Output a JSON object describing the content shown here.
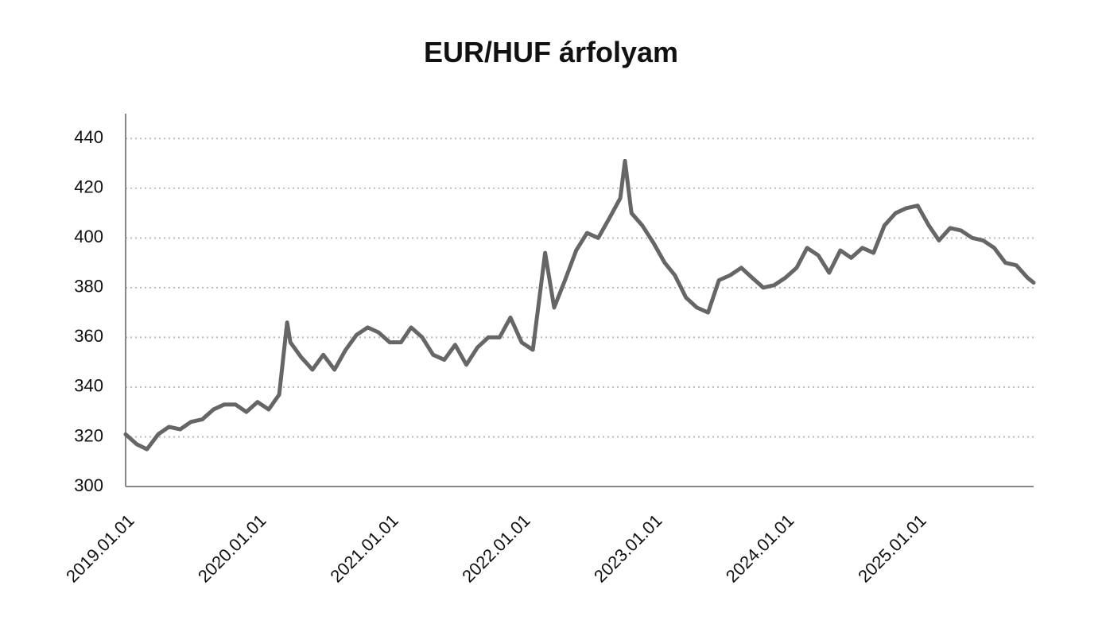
{
  "chart_data": {
    "type": "line",
    "title": "EUR/HUF árfolyam",
    "x": [
      "2019.01.01",
      "2019.02.01",
      "2019.03.01",
      "2019.04.01",
      "2019.05.01",
      "2019.06.01",
      "2019.07.01",
      "2019.08.01",
      "2019.09.01",
      "2019.10.01",
      "2019.11.01",
      "2019.12.01",
      "2020.01.01",
      "2020.02.01",
      "2020.03.01",
      "2020.03.23",
      "2020.04.01",
      "2020.05.01",
      "2020.06.01",
      "2020.07.01",
      "2020.08.01",
      "2020.09.01",
      "2020.10.01",
      "2020.11.01",
      "2020.12.01",
      "2021.01.01",
      "2021.02.01",
      "2021.03.01",
      "2021.04.01",
      "2021.05.01",
      "2021.06.01",
      "2021.07.01",
      "2021.08.01",
      "2021.09.01",
      "2021.10.01",
      "2021.11.01",
      "2021.12.01",
      "2022.01.01",
      "2022.02.01",
      "2022.03.07",
      "2022.04.01",
      "2022.05.01",
      "2022.06.01",
      "2022.07.01",
      "2022.08.01",
      "2022.09.01",
      "2022.10.01",
      "2022.10.14",
      "2022.11.01",
      "2022.12.01",
      "2023.01.01",
      "2023.02.01",
      "2023.03.01",
      "2023.04.01",
      "2023.05.01",
      "2023.06.01",
      "2023.07.01",
      "2023.08.01",
      "2023.09.01",
      "2023.10.01",
      "2023.11.01",
      "2023.12.01",
      "2024.01.01",
      "2024.02.01",
      "2024.03.01",
      "2024.04.01",
      "2024.05.01",
      "2024.06.01",
      "2024.07.01",
      "2024.08.01",
      "2024.09.01",
      "2024.10.01",
      "2024.11.01",
      "2024.12.01",
      "2025.01.01",
      "2025.02.01",
      "2025.03.01",
      "2025.04.01",
      "2025.05.01",
      "2025.06.01",
      "2025.07.01",
      "2025.08.01",
      "2025.09.01",
      "2025.10.01",
      "2025.11.01",
      "2025.11.18"
    ],
    "series": [
      {
        "name": "EUR/HUF",
        "color": "#666666",
        "values": [
          321,
          317,
          315,
          321,
          324,
          323,
          326,
          327,
          331,
          333,
          333,
          330,
          334,
          331,
          337,
          366,
          358,
          352,
          347,
          353,
          347,
          355,
          361,
          364,
          362,
          358,
          358,
          364,
          360,
          353,
          351,
          357,
          349,
          356,
          360,
          360,
          368,
          358,
          355,
          394,
          372,
          383,
          395,
          402,
          400,
          408,
          416,
          431,
          410,
          405,
          398,
          390,
          385,
          376,
          372,
          370,
          383,
          385,
          388,
          384,
          380,
          381,
          384,
          388,
          396,
          393,
          386,
          395,
          392,
          396,
          394,
          405,
          410,
          412,
          413,
          405,
          399,
          404,
          403,
          400,
          399,
          396,
          390,
          389,
          384,
          382
        ]
      }
    ],
    "xlim": [
      "2019.01.01",
      "2025.11.18"
    ],
    "xticks": [
      "2019.01.01",
      "2020.01.01",
      "2021.01.01",
      "2022.01.01",
      "2023.01.01",
      "2024.01.01",
      "2025.01.01"
    ],
    "ylim": [
      300,
      450
    ],
    "yticks": [
      300,
      320,
      340,
      360,
      380,
      400,
      420,
      440
    ],
    "grid": true
  }
}
